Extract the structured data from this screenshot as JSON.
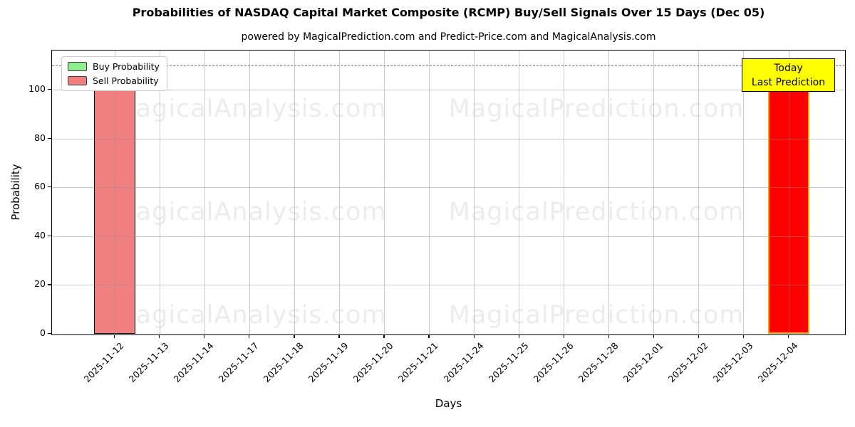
{
  "chart_data": {
    "type": "bar",
    "title": "Probabilities of NASDAQ Capital Market Composite (RCMP) Buy/Sell Signals Over 15 Days (Dec 05)",
    "subtitle": "powered by MagicalPrediction.com and Predict-Price.com and MagicalAnalysis.com",
    "xlabel": "Days",
    "ylabel": "Probability",
    "ylim": [
      0,
      116
    ],
    "yticks": [
      0,
      20,
      40,
      60,
      80,
      100
    ],
    "grid": true,
    "legend_position": "top-left",
    "categories": [
      "2025-11-12",
      "2025-11-13",
      "2025-11-14",
      "2025-11-17",
      "2025-11-18",
      "2025-11-19",
      "2025-11-20",
      "2025-11-21",
      "2025-11-24",
      "2025-11-25",
      "2025-11-26",
      "2025-11-28",
      "2025-12-01",
      "2025-12-02",
      "2025-12-03",
      "2025-12-04"
    ],
    "series": [
      {
        "name": "Buy Probability",
        "fill": "#90ee90",
        "edge": "#000000",
        "values": [
          0,
          0,
          0,
          0,
          0,
          0,
          0,
          0,
          0,
          0,
          0,
          0,
          0,
          0,
          0,
          0
        ]
      },
      {
        "name": "Sell Probability",
        "fill": "#f08080",
        "edge": "#000000",
        "values": [
          100,
          0,
          0,
          0,
          0,
          0,
          0,
          0,
          0,
          0,
          0,
          0,
          0,
          0,
          0,
          100
        ]
      }
    ],
    "today_index": 15,
    "today_bar": {
      "fill": "#ff0000",
      "edge": "#ffa500"
    },
    "threshold_line": {
      "y": 110,
      "style": "dashed",
      "color": "#7a7a7a"
    },
    "annotation": {
      "line1": "Today",
      "line2": "Last Prediction",
      "bg": "#ffff00",
      "border": "#000000"
    },
    "watermarks": {
      "left": "MagicalAnalysis.com",
      "right": "MagicalPrediction.com"
    }
  }
}
